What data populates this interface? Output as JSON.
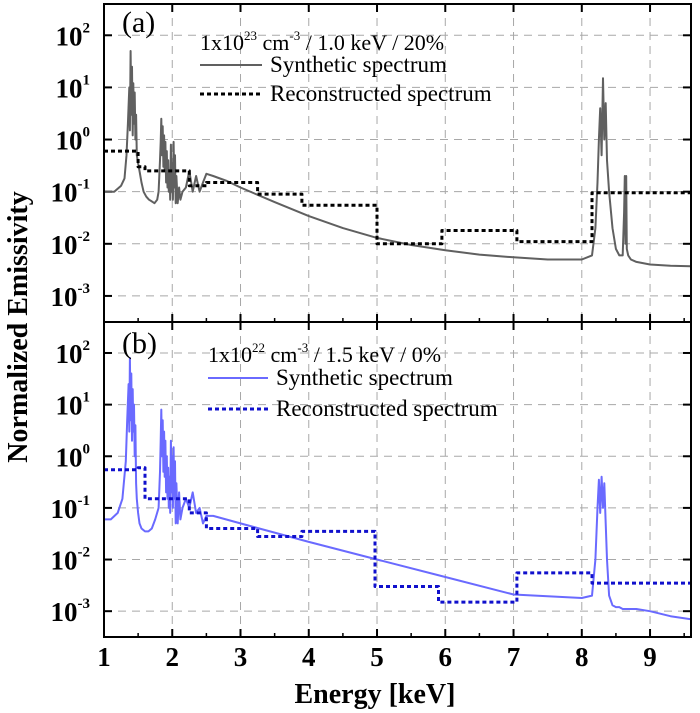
{
  "figure": {
    "ylabel": "Normalized Emissivity",
    "xlabel": "Energy [keV]"
  },
  "chart_data": [
    {
      "type": "line",
      "panel_label": "(a)",
      "conditions": {
        "prefix": "1x10",
        "exp1": "23",
        "middle": " cm",
        "exp2": "-3",
        "suffix": " / 1.0 keV / 20%"
      },
      "xlim": [
        1,
        9.6
      ],
      "ylim_log10": [
        -3.5,
        2.6
      ],
      "y_scale": "log",
      "grid": true,
      "x_ticks": [
        1,
        2,
        3,
        4,
        5,
        6,
        7,
        8,
        9
      ],
      "x_tick_labels": [
        "1",
        "2",
        "3",
        "4",
        "5",
        "6",
        "7",
        "8",
        "9"
      ],
      "y_ticks": [
        {
          "base": "10",
          "exp": "-3"
        },
        {
          "base": "10",
          "exp": "-2"
        },
        {
          "base": "10",
          "exp": "-1"
        },
        {
          "base": "10",
          "exp": "0"
        },
        {
          "base": "10",
          "exp": "1"
        },
        {
          "base": "10",
          "exp": "2"
        }
      ],
      "y_tick_values": [
        -3,
        -2,
        -1,
        0,
        1,
        2
      ],
      "legend_position": "top-center",
      "series": [
        {
          "name": "Synthetic spectrum",
          "style": "solid",
          "color": "#606060",
          "x": [
            1.0,
            1.15,
            1.25,
            1.3,
            1.33,
            1.35,
            1.37,
            1.38,
            1.39,
            1.4,
            1.41,
            1.42,
            1.43,
            1.44,
            1.45,
            1.46,
            1.47,
            1.48,
            1.5,
            1.52,
            1.55,
            1.58,
            1.62,
            1.66,
            1.7,
            1.74,
            1.78,
            1.8,
            1.82,
            1.83,
            1.84,
            1.85,
            1.86,
            1.87,
            1.88,
            1.89,
            1.9,
            1.91,
            1.92,
            1.93,
            1.94,
            1.95,
            1.96,
            1.97,
            1.98,
            1.99,
            2.0,
            2.01,
            2.02,
            2.03,
            2.04,
            2.05,
            2.06,
            2.08,
            2.1,
            2.12,
            2.15,
            2.2,
            2.25,
            2.3,
            2.35,
            2.4,
            2.45,
            2.5,
            2.6,
            2.8,
            3.0,
            3.5,
            4.0,
            4.5,
            5.0,
            5.5,
            6.0,
            6.5,
            7.0,
            7.5,
            8.0,
            8.15,
            8.2,
            8.23,
            8.25,
            8.27,
            8.29,
            8.31,
            8.33,
            8.35,
            8.37,
            8.4,
            8.45,
            8.5,
            8.55,
            8.6,
            8.62,
            8.63,
            8.64,
            8.65,
            8.66,
            8.68,
            8.72,
            8.8,
            9.0,
            9.3,
            9.6
          ],
          "y": [
            0.1,
            0.1,
            0.13,
            0.18,
            0.5,
            2.0,
            10.0,
            1.5,
            50.0,
            3.0,
            25.0,
            1.2,
            12.0,
            2.0,
            8.0,
            1.0,
            3.0,
            0.5,
            0.35,
            0.25,
            0.15,
            0.1,
            0.08,
            0.07,
            0.065,
            0.06,
            0.07,
            0.1,
            0.4,
            0.9,
            2.5,
            0.5,
            1.8,
            0.3,
            1.2,
            0.25,
            0.9,
            0.15,
            0.6,
            0.12,
            0.4,
            0.1,
            0.25,
            0.07,
            0.8,
            0.1,
            0.35,
            0.07,
            0.9,
            0.12,
            0.5,
            0.06,
            0.2,
            0.06,
            0.12,
            0.07,
            0.1,
            0.12,
            0.25,
            0.1,
            0.2,
            0.1,
            0.15,
            0.22,
            0.2,
            0.16,
            0.12,
            0.063,
            0.034,
            0.02,
            0.013,
            0.0095,
            0.0075,
            0.0062,
            0.0055,
            0.005,
            0.005,
            0.006,
            0.02,
            0.15,
            1.0,
            4.0,
            0.5,
            15.0,
            1.0,
            5.0,
            0.4,
            0.1,
            0.02,
            0.008,
            0.006,
            0.006,
            0.04,
            0.2,
            0.01,
            0.2,
            0.008,
            0.006,
            0.005,
            0.0045,
            0.004,
            0.0038,
            0.0037
          ]
        },
        {
          "name": "Reconstructed spectrum",
          "style": "dotted",
          "color": "#000000",
          "x": [
            1.0,
            1.5,
            1.5,
            1.6,
            1.6,
            2.25,
            2.25,
            2.5,
            2.5,
            3.25,
            3.25,
            3.9,
            3.9,
            5.0,
            5.0,
            5.95,
            5.95,
            7.05,
            7.05,
            8.15,
            8.15,
            9.6
          ],
          "y": [
            0.6,
            0.6,
            0.3,
            0.3,
            0.25,
            0.25,
            0.13,
            0.13,
            0.15,
            0.15,
            0.09,
            0.09,
            0.055,
            0.055,
            0.01,
            0.01,
            0.018,
            0.018,
            0.011,
            0.011,
            0.095,
            0.095
          ]
        }
      ]
    },
    {
      "type": "line",
      "panel_label": "(b)",
      "conditions": {
        "prefix": "1x10",
        "exp1": "22",
        "middle": " cm",
        "exp2": "-3",
        "suffix": " / 1.5 keV / 0%"
      },
      "xlim": [
        1,
        9.6
      ],
      "ylim_log10": [
        -3.5,
        2.6
      ],
      "y_scale": "log",
      "grid": true,
      "x_ticks": [
        1,
        2,
        3,
        4,
        5,
        6,
        7,
        8,
        9
      ],
      "x_tick_labels": [
        "1",
        "2",
        "3",
        "4",
        "5",
        "6",
        "7",
        "8",
        "9"
      ],
      "y_ticks": [
        {
          "base": "10",
          "exp": "-3"
        },
        {
          "base": "10",
          "exp": "-2"
        },
        {
          "base": "10",
          "exp": "-1"
        },
        {
          "base": "10",
          "exp": "0"
        },
        {
          "base": "10",
          "exp": "1"
        },
        {
          "base": "10",
          "exp": "2"
        }
      ],
      "y_tick_values": [
        -3,
        -2,
        -1,
        0,
        1,
        2
      ],
      "legend_position": "top-center",
      "series": [
        {
          "name": "Synthetic spectrum",
          "style": "solid",
          "color": "#6a6aff",
          "x": [
            1.0,
            1.1,
            1.2,
            1.27,
            1.32,
            1.34,
            1.36,
            1.37,
            1.38,
            1.39,
            1.4,
            1.41,
            1.42,
            1.43,
            1.44,
            1.45,
            1.46,
            1.47,
            1.48,
            1.5,
            1.52,
            1.55,
            1.6,
            1.65,
            1.7,
            1.75,
            1.8,
            1.82,
            1.83,
            1.84,
            1.85,
            1.86,
            1.87,
            1.88,
            1.89,
            1.9,
            1.91,
            1.92,
            1.93,
            1.94,
            1.95,
            1.96,
            1.97,
            1.98,
            1.99,
            2.0,
            2.01,
            2.02,
            2.03,
            2.04,
            2.05,
            2.06,
            2.08,
            2.1,
            2.12,
            2.15,
            2.2,
            2.25,
            2.3,
            2.35,
            2.4,
            2.45,
            2.5,
            2.6,
            3.0,
            4.0,
            5.0,
            6.0,
            7.0,
            8.0,
            8.15,
            8.2,
            8.23,
            8.25,
            8.27,
            8.29,
            8.31,
            8.33,
            8.35,
            8.37,
            8.4,
            8.45,
            8.5,
            8.55,
            8.6,
            8.8,
            9.0,
            9.3,
            9.6
          ],
          "y": [
            0.06,
            0.06,
            0.08,
            0.15,
            0.8,
            5.0,
            25.0,
            3.0,
            80.0,
            5.0,
            40.0,
            2.0,
            20.0,
            3.0,
            10.0,
            1.0,
            4.0,
            0.3,
            0.15,
            0.08,
            0.05,
            0.04,
            0.035,
            0.035,
            0.04,
            0.06,
            0.1,
            0.5,
            2.0,
            8.0,
            1.0,
            5.0,
            0.5,
            3.0,
            0.4,
            2.0,
            0.2,
            1.0,
            0.15,
            0.6,
            0.1,
            0.4,
            0.08,
            2.0,
            0.2,
            1.0,
            0.1,
            1.5,
            0.15,
            0.8,
            0.05,
            0.3,
            0.05,
            0.2,
            0.06,
            0.1,
            0.15,
            0.1,
            0.2,
            0.08,
            0.1,
            0.05,
            0.07,
            0.07,
            0.05,
            0.022,
            0.01,
            0.0046,
            0.0021,
            0.0018,
            0.002,
            0.01,
            0.1,
            0.35,
            0.08,
            0.4,
            0.1,
            0.3,
            0.05,
            0.01,
            0.002,
            0.0013,
            0.0012,
            0.0012,
            0.0011,
            0.0011,
            0.001,
            0.0008,
            0.0007
          ]
        },
        {
          "name": "Reconstructed spectrum",
          "style": "dotted",
          "color": "#1010cc",
          "x": [
            1.0,
            1.5,
            1.5,
            1.6,
            1.6,
            2.25,
            2.25,
            2.5,
            2.5,
            3.25,
            3.25,
            3.9,
            3.9,
            4.97,
            4.97,
            5.9,
            5.9,
            5.95,
            5.95,
            7.05,
            7.05,
            8.15,
            8.15,
            9.6
          ],
          "y": [
            0.55,
            0.55,
            0.6,
            0.6,
            0.15,
            0.15,
            0.08,
            0.08,
            0.04,
            0.04,
            0.028,
            0.028,
            0.035,
            0.035,
            0.003,
            0.003,
            0.0015,
            0.0015,
            0.0015,
            0.0015,
            0.0055,
            0.0055,
            0.0035,
            0.0035
          ]
        }
      ]
    }
  ]
}
